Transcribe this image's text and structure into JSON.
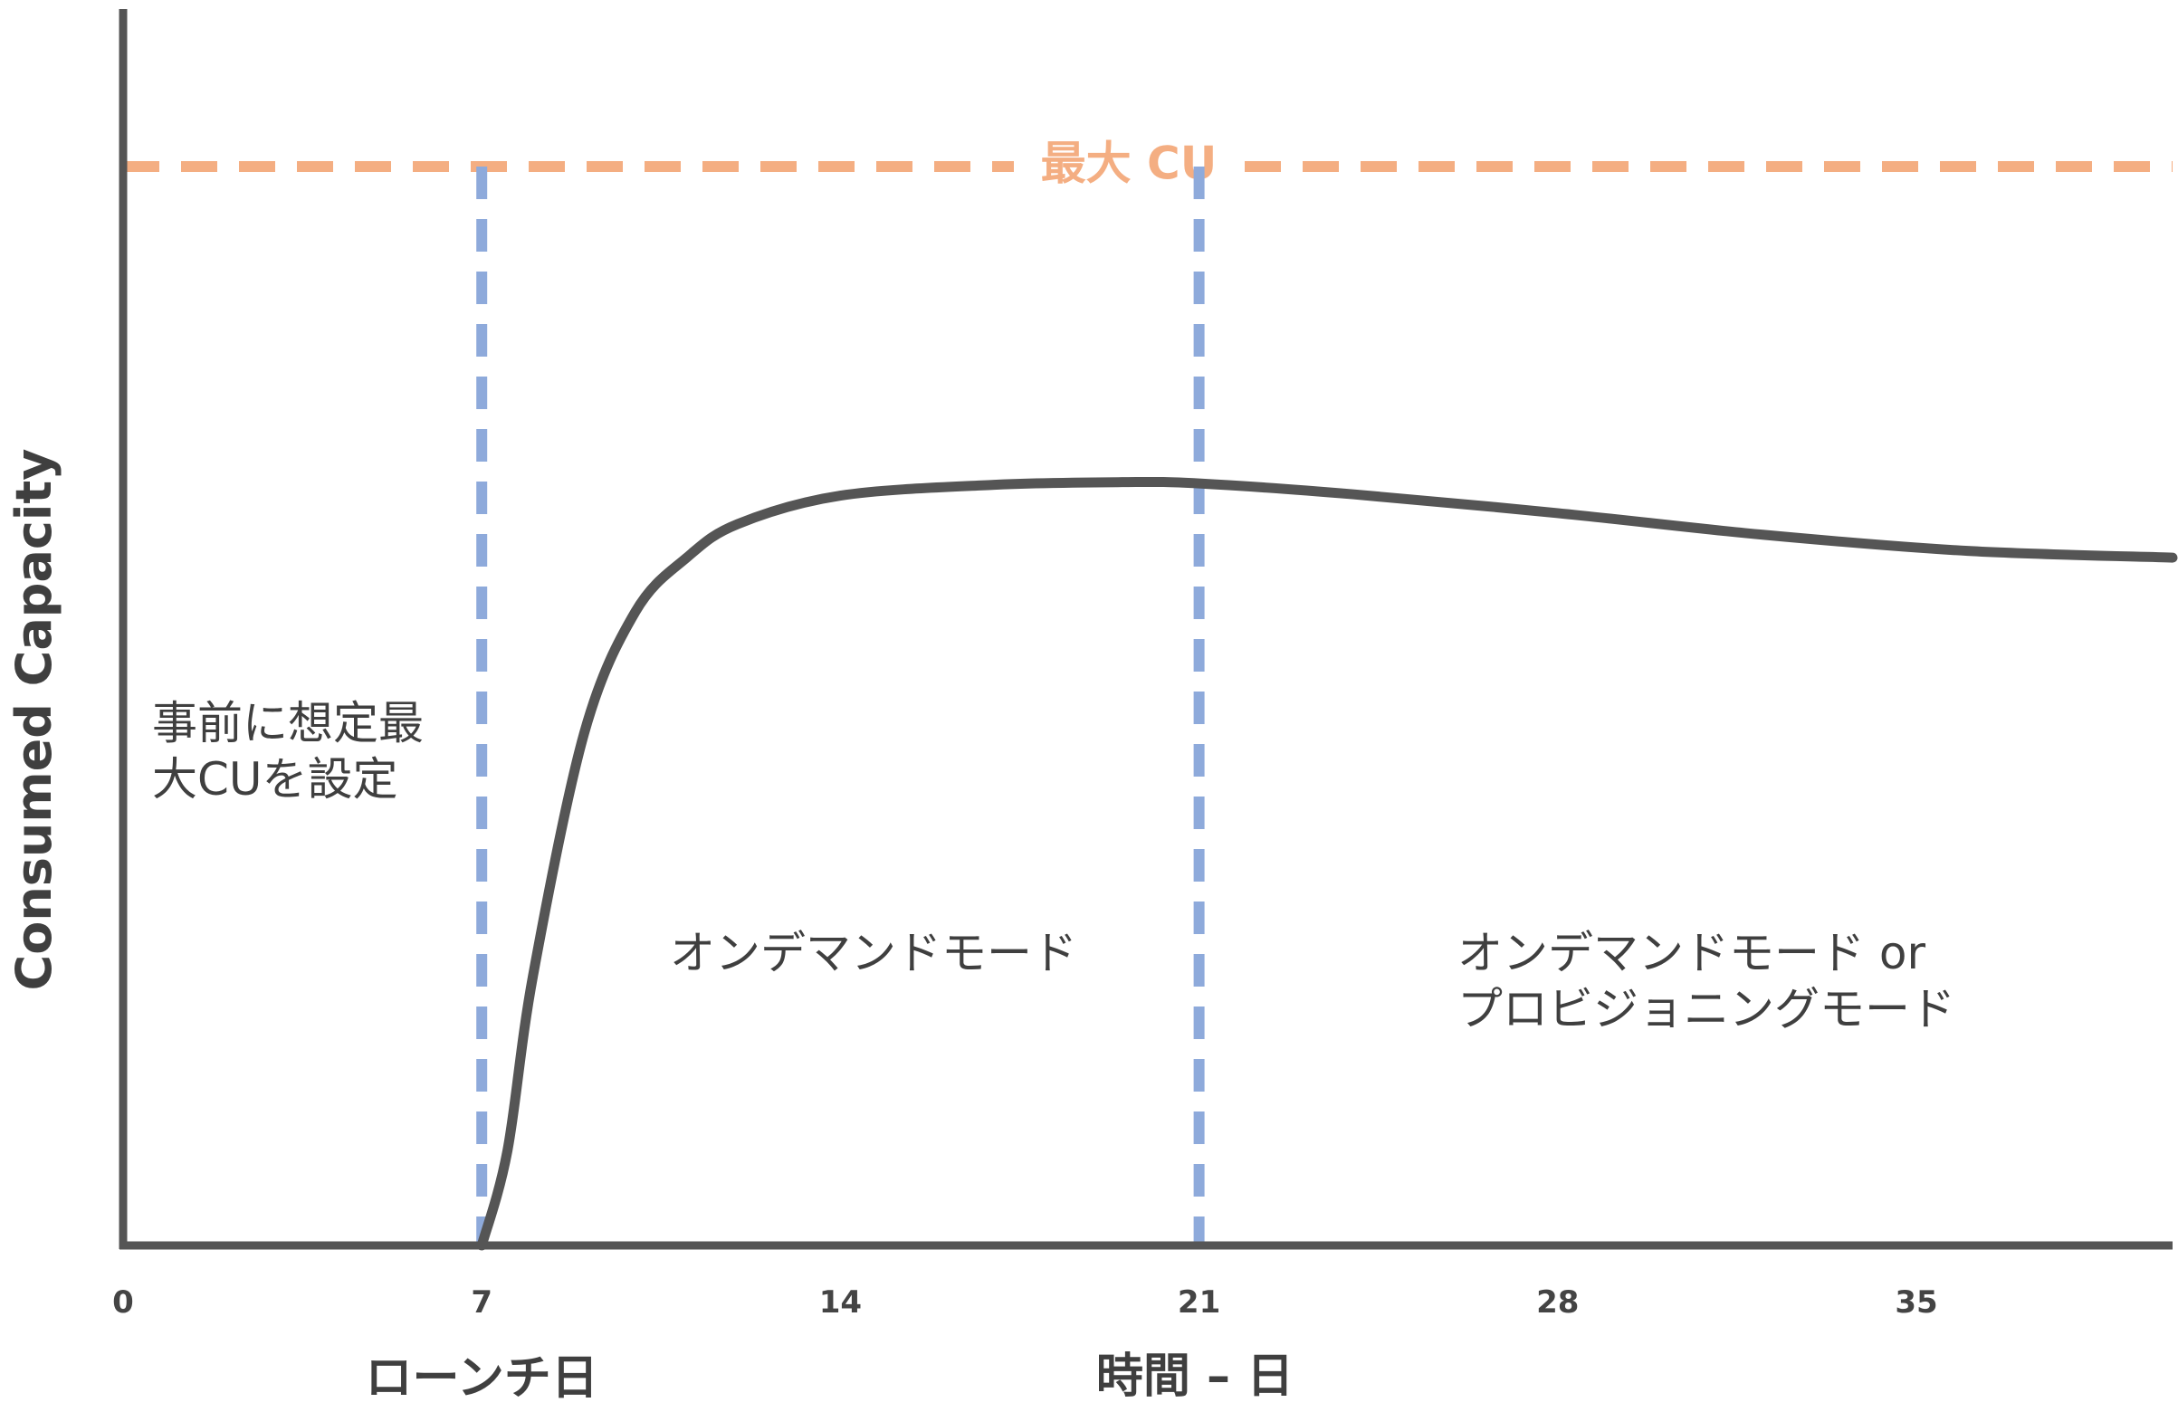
{
  "chart_data": {
    "type": "line",
    "ylabel": "Consumed Capacity",
    "xlabel": "時間 – 日",
    "xlim": [
      0,
      40
    ],
    "ylim": [
      0,
      100
    ],
    "x_ticks": [
      0,
      7,
      14,
      21,
      28,
      35
    ],
    "max_cu": {
      "label": "最大 CU",
      "value": 80,
      "color": "#F4AE82"
    },
    "markers": [
      {
        "x": 7,
        "label": "ローンチ日",
        "color": "#8EAADB"
      },
      {
        "x": 21,
        "label": "",
        "color": "#8EAADB"
      }
    ],
    "series": [
      {
        "color": "#555555",
        "points": [
          [
            7,
            0
          ],
          [
            7.5,
            7
          ],
          [
            8,
            20
          ],
          [
            9,
            38
          ],
          [
            10,
            47
          ],
          [
            11,
            51
          ],
          [
            12,
            53.5
          ],
          [
            14,
            55.6
          ],
          [
            17,
            56.4
          ],
          [
            19.5,
            56.6
          ],
          [
            21,
            56.5
          ],
          [
            24,
            55.7
          ],
          [
            28,
            54.3
          ],
          [
            32,
            52.7
          ],
          [
            36,
            51.5
          ],
          [
            40,
            51
          ]
        ]
      }
    ],
    "annotations": [
      {
        "lines": [
          "事前に想定最",
          "大CUを設定"
        ]
      },
      {
        "lines": [
          "オンデマンドモード"
        ]
      },
      {
        "lines": [
          "オンデマンドモード or",
          "プロビジョニングモード"
        ]
      }
    ]
  }
}
